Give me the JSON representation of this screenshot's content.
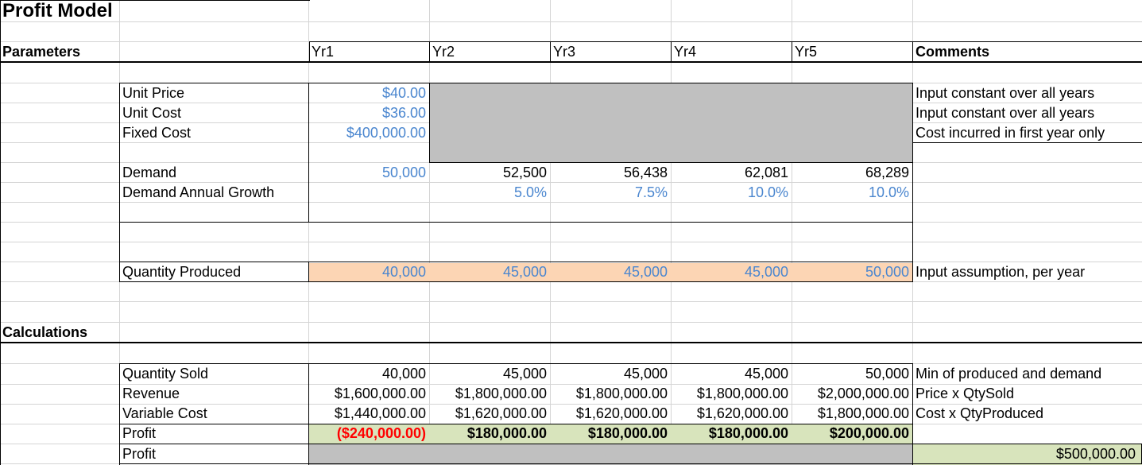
{
  "title": "Profit Model",
  "parameters_label": "Parameters",
  "calculations_label": "Calculations",
  "years": [
    "Yr1",
    "Yr2",
    "Yr3",
    "Yr4",
    "Yr5"
  ],
  "comments_header": "Comments",
  "unit_price": {
    "label": "Unit Price",
    "yr1": "$40.00",
    "comment": "Input constant over all years"
  },
  "unit_cost": {
    "label": "Unit Cost",
    "yr1": "$36.00",
    "comment": "Input constant over all years"
  },
  "fixed_cost": {
    "label": "Fixed Cost",
    "yr1": "$400,000.00",
    "comment": "Cost incurred in first year only"
  },
  "demand": {
    "label": "Demand",
    "values": [
      "50,000",
      "52,500",
      "56,438",
      "62,081",
      "68,289"
    ]
  },
  "demand_growth": {
    "label": "Demand Annual Growth",
    "values": [
      "5.0%",
      "7.5%",
      "10.0%",
      "10.0%"
    ]
  },
  "quantity_produced": {
    "label": "Quantity Produced",
    "values": [
      "40,000",
      "45,000",
      "45,000",
      "45,000",
      "50,000"
    ],
    "comment": "Input assumption, per year"
  },
  "quantity_sold": {
    "label": "Quantity Sold",
    "values": [
      "40,000",
      "45,000",
      "45,000",
      "45,000",
      "50,000"
    ],
    "comment": "Min of produced and demand"
  },
  "revenue": {
    "label": "Revenue",
    "values": [
      "$1,600,000.00",
      "$1,800,000.00",
      "$1,800,000.00",
      "$1,800,000.00",
      "$2,000,000.00"
    ],
    "comment": "Price x QtySold"
  },
  "variable_cost": {
    "label": "Variable Cost",
    "values": [
      "$1,440,000.00",
      "$1,620,000.00",
      "$1,620,000.00",
      "$1,620,000.00",
      "$1,800,000.00"
    ],
    "comment": "Cost x QtyProduced"
  },
  "profit_yearly": {
    "label": "Profit",
    "values": [
      "($240,000.00)",
      "$180,000.00",
      "$180,000.00",
      "$180,000.00",
      "$200,000.00"
    ]
  },
  "profit_total": {
    "label": "Profit",
    "value": "$500,000.00"
  },
  "colors": {
    "input_blue": "#4a86cf",
    "gray_fill": "#c0c0c0",
    "orange_fill": "#fcd5b4",
    "green_fill": "#d8e4bc",
    "negative_red": "#ff0000"
  }
}
